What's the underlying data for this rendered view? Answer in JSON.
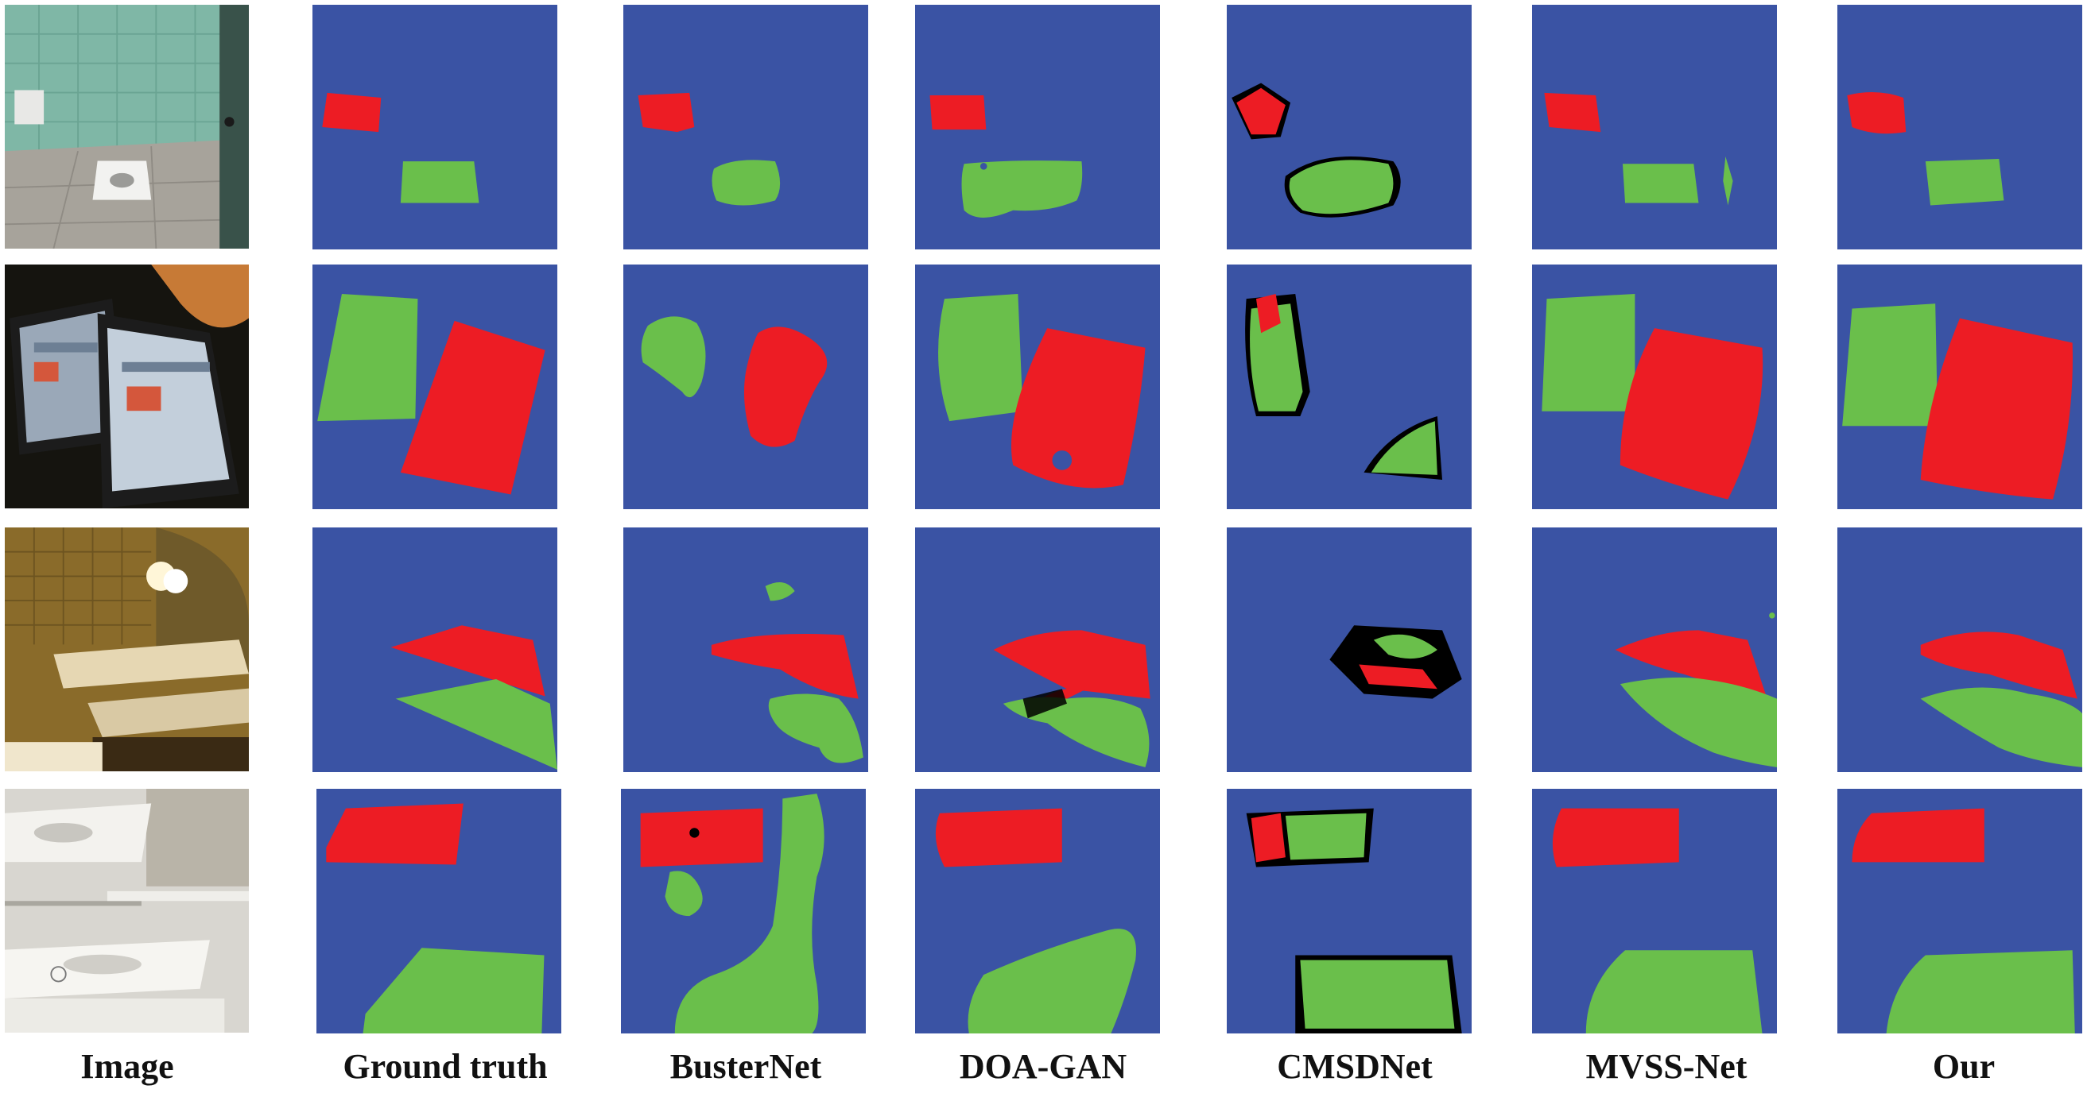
{
  "columns": [
    "Image",
    "Ground truth",
    "BusterNet",
    "DOA-GAN",
    "CMSDNet",
    "MVSS-Net",
    "Our"
  ],
  "colors": {
    "background": "#3a53a4",
    "source_region": "#ed1c24",
    "target_region": "#6abf4b",
    "boundary": "#000000"
  },
  "rows": [
    {
      "scene": "bathroom with squat toilet"
    },
    {
      "scene": "two tablets on a table"
    },
    {
      "scene": "hotel bathroom counter with sinks"
    },
    {
      "scene": "white sinks with towel bar"
    }
  ]
}
